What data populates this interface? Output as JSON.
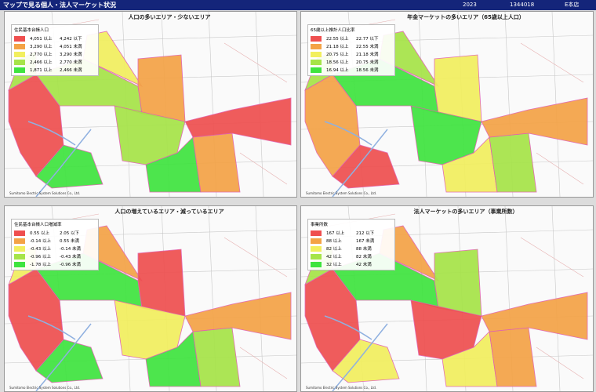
{
  "header": {
    "title": "マップで見る個人・法人マーケット状況",
    "items": [
      "2023",
      "1344018",
      "E本店"
    ]
  },
  "colors": [
    "#ef4f4f",
    "#f4a346",
    "#f2ef5e",
    "#a6e448",
    "#3fe43f"
  ],
  "credit": "Sumitomo Electric System Solutions Co., Ltd.",
  "panels": [
    {
      "title": "人口の多いエリア・少ないエリア",
      "legend": {
        "title": "住民基本台帳人口",
        "rows": [
          [
            "4,051 以上",
            "4,242 以下"
          ],
          [
            "3,290 以上",
            "4,051 未満"
          ],
          [
            "2,770 以上",
            "3,290 未満"
          ],
          [
            "2,466 以上",
            "2,770 未満"
          ],
          [
            "1,871 以上",
            "2,466 未満"
          ]
        ]
      }
    },
    {
      "title": "年金マーケットの多いエリア（65歳以上人口）",
      "legend": {
        "title": "65歳以上推計人口比率",
        "rows": [
          [
            "22.55 以上",
            "22.77 以下"
          ],
          [
            "21.18 以上",
            "22.55 未満"
          ],
          [
            "20.75 以上",
            "21.18 未満"
          ],
          [
            "18.56 以上",
            "20.75 未満"
          ],
          [
            "16.94 以上",
            "18.56 未満"
          ]
        ]
      }
    },
    {
      "title": "人口の増えているエリア・減っているエリア",
      "legend": {
        "title": "住民基本台帳人口増減率",
        "rows": [
          [
            "0.55 以上",
            "2.05 以下"
          ],
          [
            "-0.14 以上",
            "0.55 未満"
          ],
          [
            "-0.43 以上",
            "-0.14 未満"
          ],
          [
            "-0.96 以上",
            "-0.43 未満"
          ],
          [
            "-1.78 以上",
            "-0.96 未満"
          ]
        ]
      }
    },
    {
      "title": "法人マーケットの多いエリア（事業所数）",
      "legend": {
        "title": "事業所数",
        "rows": [
          [
            "167 以上",
            "212 以下"
          ],
          [
            "88 以上",
            "167 未満"
          ],
          [
            "82 以上",
            "88 未満"
          ],
          [
            "42 以上",
            "82 未満"
          ],
          [
            "32 以上",
            "42 未満"
          ]
        ]
      }
    }
  ]
}
